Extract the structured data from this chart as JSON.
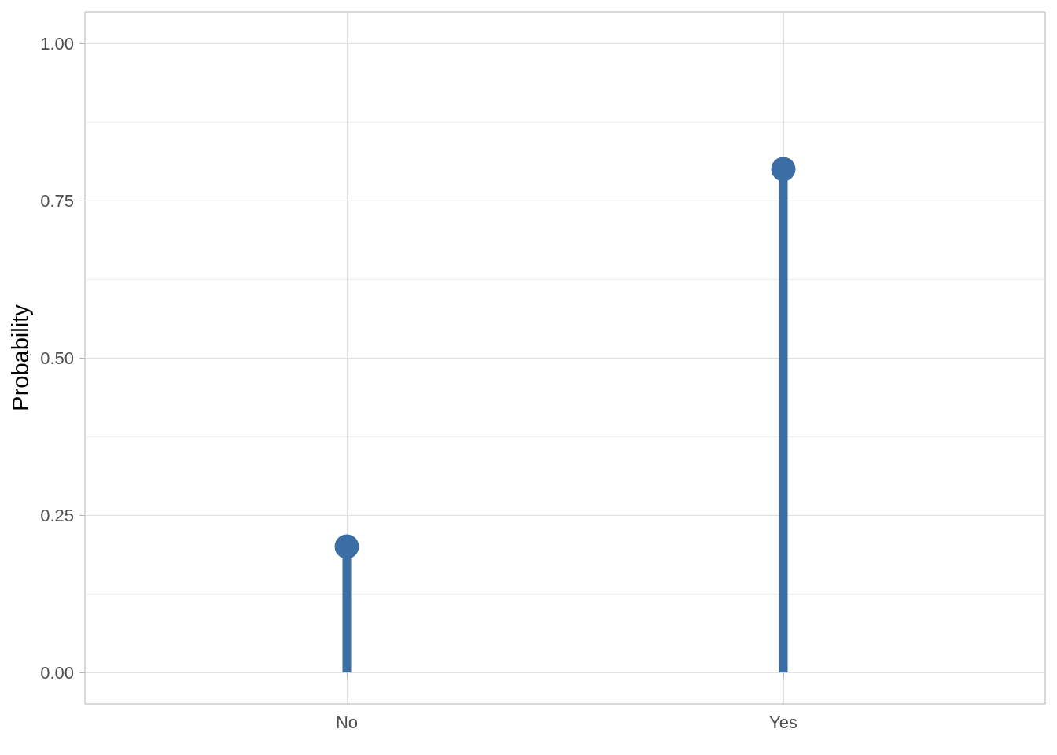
{
  "chart_data": {
    "type": "lollipop",
    "ylabel": "Probability",
    "categories": [
      "No",
      "Yes"
    ],
    "values": [
      0.2,
      0.8
    ],
    "color": "#3a6ea5",
    "marker": "circle",
    "ylim": [
      -0.05,
      1.05
    ],
    "yticks": [
      {
        "value": 0,
        "label": "0.00"
      },
      {
        "value": 0.125,
        "label": null
      },
      {
        "value": 0.25,
        "label": "0.25"
      },
      {
        "value": 0.375,
        "label": null
      },
      {
        "value": 0.5,
        "label": "0.50"
      },
      {
        "value": 0.625,
        "label": null
      },
      {
        "value": 0.75,
        "label": "0.75"
      },
      {
        "value": 0.875,
        "label": null
      },
      {
        "value": 1,
        "label": "1.00"
      }
    ],
    "grid": true
  }
}
